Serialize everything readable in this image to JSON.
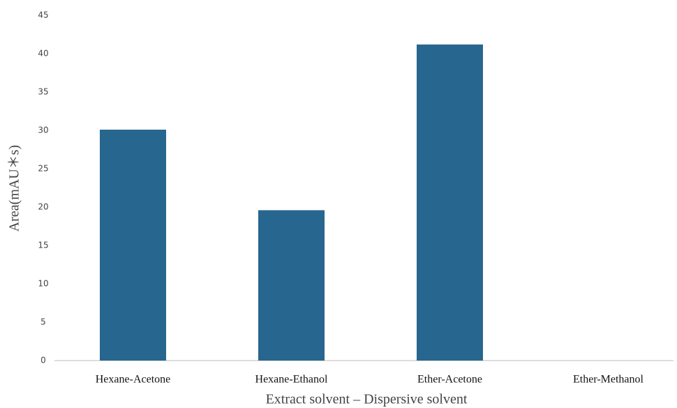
{
  "chart_data": {
    "type": "bar",
    "x_label": "Extract solvent – Dispersive solvent",
    "y_label": "Area(mAU＊s)",
    "categories": [
      "Hexane-Acetone",
      "Hexane-Ethanol",
      "Ether-Acetone",
      "Ether-Methanol"
    ],
    "values": [
      30.1,
      19.6,
      41.2,
      0
    ],
    "color": "#27668f",
    "ylim": [
      0,
      45
    ],
    "yticks": [
      0,
      5,
      10,
      15,
      20,
      25,
      30,
      35,
      40,
      45
    ],
    "grid": false
  }
}
